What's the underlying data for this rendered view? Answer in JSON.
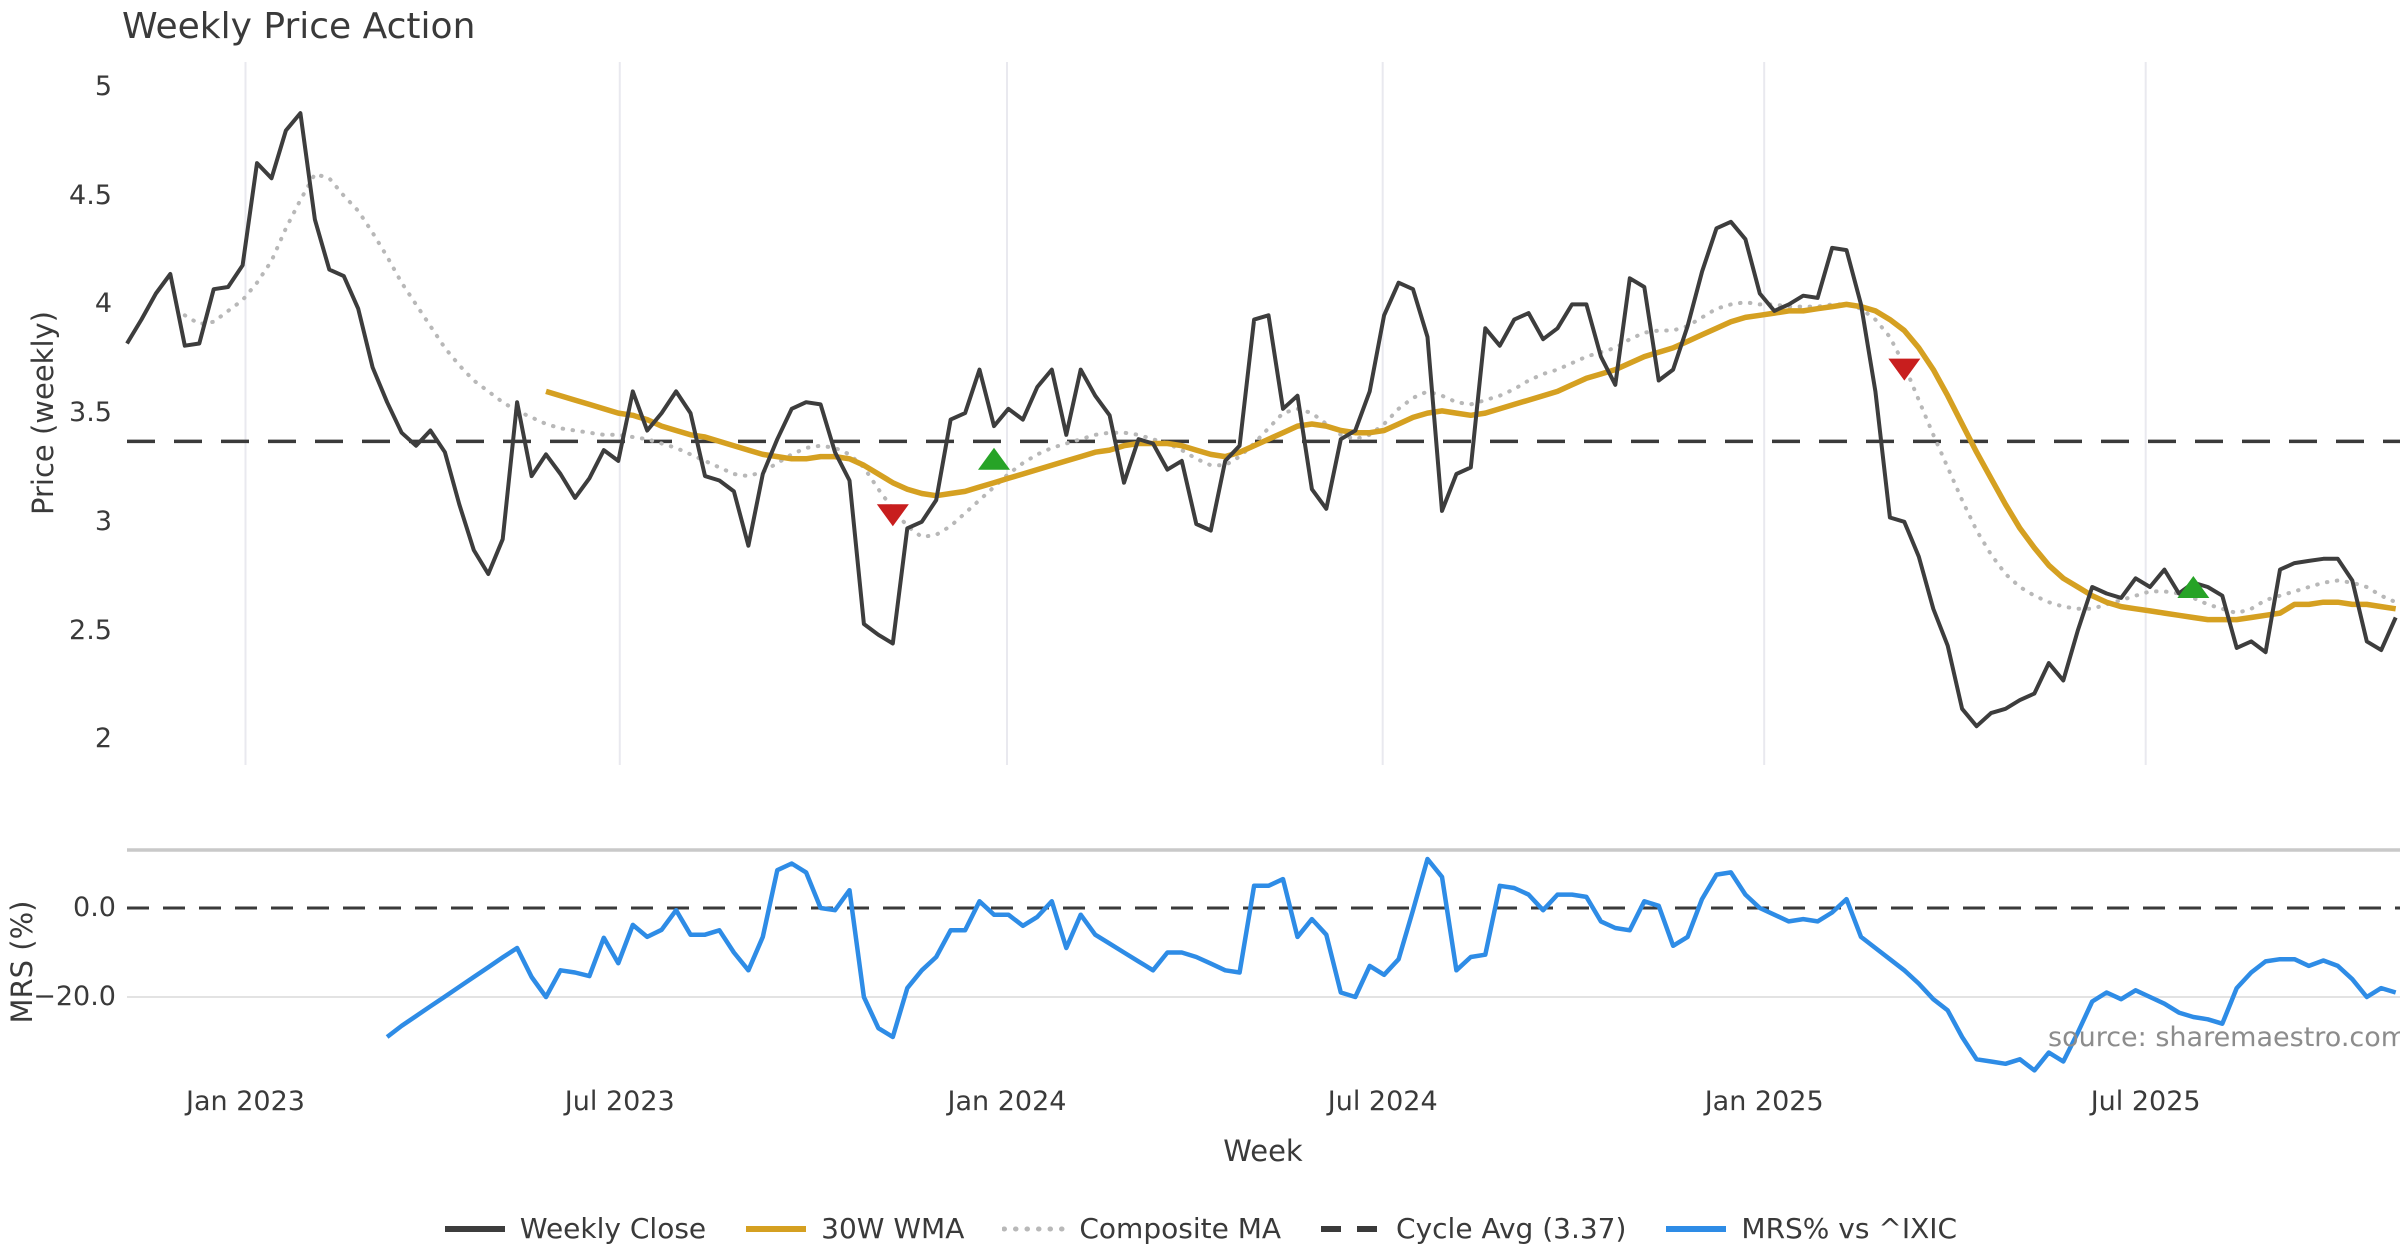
{
  "title": "Weekly Price Action",
  "source_note": "source: sharemaestro.com",
  "axes": {
    "price_label": "Price (weekly)",
    "mrs_label": "MRS (%)",
    "x_label": "Week"
  },
  "legend": [
    {
      "label": "Weekly Close",
      "swatch": "solid",
      "color": "#3d3d3d"
    },
    {
      "label": "30W WMA",
      "swatch": "solid",
      "color": "#d5a021"
    },
    {
      "label": "Composite MA",
      "swatch": "dotted",
      "color": "#b8b8b8"
    },
    {
      "label": "Cycle Avg (3.37)",
      "swatch": "dashed",
      "color": "#3a3a3a"
    },
    {
      "label": "MRS% vs ^IXIC",
      "swatch": "solid",
      "color": "#2e8ce6"
    }
  ],
  "colors": {
    "close": "#3d3d3d",
    "wma": "#d5a021",
    "composite": "#b8b8b8",
    "cycle_avg": "#3a3a3a",
    "mrs": "#2e8ce6",
    "sell_marker": "#c81e1e",
    "buy_marker": "#27a327",
    "gridline": "#e9e9ef",
    "panel_border": "#c9c9c9",
    "minor_gridline": "#e3e3e3",
    "text": "#3a3a3a",
    "source_text": "#8c8c8c"
  },
  "chart_data": {
    "type": "line",
    "title": "Weekly Price Action",
    "x_unit": "week index, weekly bars from late 2022 to late 2025",
    "x_ticks": [
      {
        "label": "Jan 2023",
        "week": 8.2
      },
      {
        "label": "Jul 2023",
        "week": 34.1
      },
      {
        "label": "Jan 2024",
        "week": 60.9
      },
      {
        "label": "Jul 2024",
        "week": 86.9
      },
      {
        "label": "Jan 2025",
        "week": 113.3
      },
      {
        "label": "Jul 2025",
        "week": 139.7
      }
    ],
    "panels": [
      {
        "name": "price",
        "ylabel": "Price (weekly)",
        "ylim": [
          1.88,
          5.12
        ],
        "yticks": [
          {
            "label": "5",
            "value": 5.0
          },
          {
            "label": "4.5",
            "value": 4.5
          },
          {
            "label": "4",
            "value": 4.0
          },
          {
            "label": "3.5",
            "value": 3.5
          },
          {
            "label": "3",
            "value": 3.0
          },
          {
            "label": "2.5",
            "value": 2.5
          },
          {
            "label": "2",
            "value": 2.0
          }
        ],
        "cycle_avg": 3.37,
        "series": [
          {
            "name": "Weekly Close",
            "style": "solid",
            "start_week": 0,
            "values": [
              3.82,
              3.93,
              4.05,
              4.14,
              3.81,
              3.82,
              4.07,
              4.08,
              4.18,
              4.65,
              4.58,
              4.8,
              4.88,
              4.39,
              4.16,
              4.13,
              3.98,
              3.71,
              3.55,
              3.41,
              3.35,
              3.42,
              3.32,
              3.08,
              2.87,
              2.76,
              2.92,
              3.55,
              3.21,
              3.31,
              3.22,
              3.11,
              3.2,
              3.33,
              3.28,
              3.6,
              3.42,
              3.5,
              3.6,
              3.5,
              3.21,
              3.19,
              3.14,
              2.89,
              3.22,
              3.38,
              3.52,
              3.55,
              3.54,
              3.32,
              3.19,
              2.53,
              2.48,
              2.44,
              2.97,
              3.0,
              3.1,
              3.47,
              3.5,
              3.7,
              3.44,
              3.52,
              3.47,
              3.62,
              3.7,
              3.4,
              3.7,
              3.58,
              3.49,
              3.18,
              3.38,
              3.36,
              3.24,
              3.28,
              2.99,
              2.96,
              3.28,
              3.35,
              3.93,
              3.95,
              3.52,
              3.58,
              3.15,
              3.06,
              3.38,
              3.42,
              3.6,
              3.95,
              4.1,
              4.07,
              3.85,
              3.05,
              3.22,
              3.25,
              3.89,
              3.81,
              3.93,
              3.96,
              3.84,
              3.89,
              4.0,
              4.0,
              3.76,
              3.63,
              4.12,
              4.08,
              3.65,
              3.7,
              3.9,
              4.15,
              4.35,
              4.38,
              4.3,
              4.05,
              3.97,
              4.0,
              4.04,
              4.03,
              4.26,
              4.25,
              4.0,
              3.6,
              3.02,
              3.0,
              2.84,
              2.6,
              2.43,
              2.14,
              2.06,
              2.12,
              2.14,
              2.18,
              2.21,
              2.35,
              2.27,
              2.5,
              2.7,
              2.67,
              2.65,
              2.74,
              2.7,
              2.78,
              2.67,
              2.72,
              2.7,
              2.66,
              2.42,
              2.45,
              2.4,
              2.78,
              2.81,
              2.82,
              2.83,
              2.83,
              2.73,
              2.45,
              2.41,
              2.56
            ]
          },
          {
            "name": "30W WMA",
            "style": "solid",
            "start_week": 29,
            "values": [
              3.6,
              3.58,
              3.56,
              3.54,
              3.52,
              3.5,
              3.49,
              3.47,
              3.44,
              3.42,
              3.4,
              3.39,
              3.37,
              3.35,
              3.33,
              3.31,
              3.3,
              3.29,
              3.29,
              3.3,
              3.3,
              3.29,
              3.26,
              3.22,
              3.18,
              3.15,
              3.13,
              3.12,
              3.13,
              3.14,
              3.16,
              3.18,
              3.2,
              3.22,
              3.24,
              3.26,
              3.28,
              3.3,
              3.32,
              3.33,
              3.35,
              3.36,
              3.36,
              3.36,
              3.35,
              3.33,
              3.31,
              3.3,
              3.32,
              3.35,
              3.38,
              3.41,
              3.44,
              3.45,
              3.44,
              3.42,
              3.41,
              3.41,
              3.42,
              3.45,
              3.48,
              3.5,
              3.51,
              3.5,
              3.49,
              3.5,
              3.52,
              3.54,
              3.56,
              3.58,
              3.6,
              3.63,
              3.66,
              3.68,
              3.7,
              3.73,
              3.76,
              3.78,
              3.8,
              3.83,
              3.86,
              3.89,
              3.92,
              3.94,
              3.95,
              3.96,
              3.97,
              3.97,
              3.98,
              3.99,
              4.0,
              3.99,
              3.97,
              3.93,
              3.88,
              3.8,
              3.7,
              3.58,
              3.45,
              3.32,
              3.2,
              3.08,
              2.97,
              2.88,
              2.8,
              2.74,
              2.7,
              2.66,
              2.63,
              2.61,
              2.6,
              2.59,
              2.58,
              2.57,
              2.56,
              2.55,
              2.55,
              2.55,
              2.56,
              2.57,
              2.58,
              2.62,
              2.62,
              2.63,
              2.63,
              2.62,
              2.62,
              2.61,
              2.6
            ]
          },
          {
            "name": "Composite MA",
            "style": "dotted",
            "start_week": 4,
            "values": [
              3.95,
              3.91,
              3.92,
              3.97,
              4.02,
              4.1,
              4.2,
              4.35,
              4.48,
              4.6,
              4.58,
              4.5,
              4.43,
              4.33,
              4.22,
              4.1,
              4.0,
              3.9,
              3.8,
              3.72,
              3.65,
              3.6,
              3.55,
              3.51,
              3.48,
              3.45,
              3.43,
              3.42,
              3.41,
              3.4,
              3.4,
              3.39,
              3.38,
              3.36,
              3.34,
              3.31,
              3.28,
              3.25,
              3.22,
              3.21,
              3.23,
              3.27,
              3.31,
              3.34,
              3.35,
              3.34,
              3.31,
              3.25,
              3.15,
              3.06,
              2.98,
              2.93,
              2.94,
              2.98,
              3.04,
              3.1,
              3.16,
              3.22,
              3.27,
              3.31,
              3.34,
              3.36,
              3.38,
              3.4,
              3.41,
              3.41,
              3.4,
              3.38,
              3.36,
              3.33,
              3.29,
              3.26,
              3.26,
              3.3,
              3.36,
              3.43,
              3.5,
              3.52,
              3.5,
              3.45,
              3.4,
              3.38,
              3.4,
              3.45,
              3.52,
              3.57,
              3.6,
              3.58,
              3.55,
              3.54,
              3.56,
              3.58,
              3.61,
              3.65,
              3.68,
              3.7,
              3.73,
              3.76,
              3.78,
              3.8,
              3.84,
              3.87,
              3.88,
              3.88,
              3.9,
              3.94,
              3.98,
              4.0,
              4.01,
              4.0,
              4.0,
              3.99,
              3.99,
              3.99,
              4.0,
              4.0,
              3.98,
              3.93,
              3.85,
              3.72,
              3.56,
              3.4,
              3.25,
              3.1,
              2.96,
              2.85,
              2.76,
              2.7,
              2.66,
              2.63,
              2.61,
              2.6,
              2.6,
              2.62,
              2.64,
              2.66,
              2.68,
              2.68,
              2.67,
              2.65,
              2.62,
              2.6,
              2.58,
              2.6,
              2.64,
              2.66,
              2.68,
              2.7,
              2.72,
              2.73,
              2.72,
              2.7,
              2.66,
              2.63
            ]
          }
        ],
        "markers": [
          {
            "type": "sell",
            "shape": "triangle-down",
            "week": 53,
            "value": 3.03
          },
          {
            "type": "buy",
            "shape": "triangle-up",
            "week": 60,
            "value": 3.29
          },
          {
            "type": "sell",
            "shape": "triangle-down",
            "week": 123,
            "value": 3.7
          },
          {
            "type": "buy",
            "shape": "triangle-up",
            "week": 143,
            "value": 2.7
          }
        ]
      },
      {
        "name": "mrs",
        "ylabel": "MRS (%)",
        "ylim": [
          -37.5,
          13
        ],
        "yticks": [
          {
            "label": "0.0",
            "value": 0
          },
          {
            "label": "−20.0",
            "value": -20
          }
        ],
        "zero_line": 0,
        "series": [
          {
            "name": "MRS% vs ^IXIC",
            "style": "solid",
            "start_week": 18,
            "values": [
              -29,
              -26.5,
              -24.3,
              -22.1,
              -19.9,
              -17.7,
              -15.5,
              -13.3,
              -11.1,
              -9,
              -15.5,
              -20,
              -14,
              -14.5,
              -15.3,
              -6.7,
              -12.4,
              -3.8,
              -6.5,
              -4.9,
              -0.5,
              -6,
              -6,
              -5,
              -10,
              -14,
              -6.5,
              8.5,
              10,
              8,
              0,
              -0.5,
              4,
              -20,
              -27,
              -29,
              -18,
              -14,
              -11,
              -5,
              -5,
              1.5,
              -1.5,
              -1.5,
              -4,
              -2,
              1.5,
              -9,
              -1.5,
              -6,
              -8,
              -10,
              -12,
              -14,
              -10,
              -10,
              -11,
              -12.5,
              -14,
              -14.5,
              5,
              5,
              6.5,
              -6.5,
              -2.5,
              -6,
              -19,
              -20,
              -13,
              -15,
              -11.5,
              -0.5,
              11,
              7,
              -14,
              -11,
              -10.5,
              5,
              4.5,
              3,
              -0.5,
              3,
              3,
              2.5,
              -3,
              -4.5,
              -5,
              1.5,
              0.5,
              -8.5,
              -6.5,
              2,
              7.5,
              8,
              3,
              0,
              -1.5,
              -3,
              -2.5,
              -3,
              -1,
              2,
              -6.5,
              -9,
              -11.5,
              -14,
              -17,
              -20.5,
              -23,
              -29,
              -34,
              -34.5,
              -35,
              -34,
              -36.5,
              -32.5,
              -34.5,
              -28,
              -21,
              -19,
              -20.5,
              -18.5,
              -20,
              -21.5,
              -23.5,
              -24.5,
              -25,
              -26,
              -18,
              -14.5,
              -12,
              -11.5,
              -11.5,
              -13,
              -11.8,
              -13,
              -16,
              -20,
              -18,
              -19
            ]
          }
        ]
      }
    ]
  }
}
